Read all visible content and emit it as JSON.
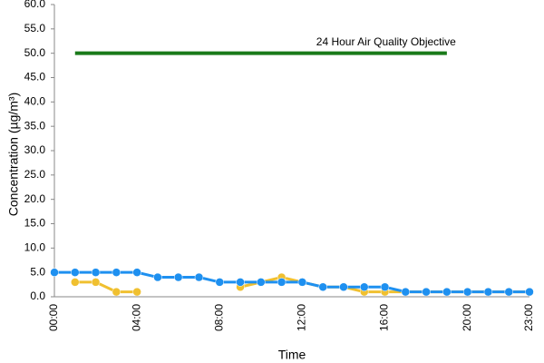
{
  "chart_data": {
    "type": "line",
    "y_label": "Concentration (µg/m³)",
    "x_label": "Time",
    "categories": [
      "00:00",
      null,
      null,
      null,
      "04:00",
      null,
      null,
      null,
      "08:00",
      null,
      null,
      null,
      "12:00",
      null,
      null,
      null,
      "16:00",
      null,
      null,
      null,
      "20:00",
      null,
      null,
      "23:00"
    ],
    "series": [
      {
        "color": "#f0c030",
        "values": [
          null,
          3,
          3,
          1,
          1,
          null,
          null,
          null,
          null,
          2,
          3,
          4,
          3,
          2,
          2,
          1,
          1,
          1,
          1,
          1,
          1,
          1,
          1,
          1
        ],
        "markers": true
      },
      {
        "color": "#1e90f0",
        "values": [
          5,
          5,
          5,
          5,
          5,
          4,
          4,
          4,
          3,
          3,
          3,
          3,
          3,
          2,
          2,
          2,
          2,
          1,
          1,
          1,
          1,
          1,
          1,
          1
        ],
        "markers": true
      },
      {
        "name": "24 Hour Air Quality Objective",
        "color": "#1a7a1a",
        "values": [
          null,
          50,
          50,
          50,
          50,
          50,
          50,
          50,
          50,
          50,
          50,
          50,
          50,
          50,
          50,
          50,
          50,
          50,
          50,
          50,
          null,
          null,
          null,
          null
        ],
        "markers": false
      }
    ],
    "ylim": [
      0,
      60
    ],
    "yticks": [
      {
        "value": 0,
        "label": "0.0"
      },
      {
        "value": 5,
        "label": "5.0"
      },
      {
        "value": 10,
        "label": "10.0"
      },
      {
        "value": 15,
        "label": "15.0"
      },
      {
        "value": 20,
        "label": "20.0"
      },
      {
        "value": 25,
        "label": "25.0"
      },
      {
        "value": 30,
        "label": "30.0"
      },
      {
        "value": 35,
        "label": "35.0"
      },
      {
        "value": 40,
        "label": "40.0"
      },
      {
        "value": 45,
        "label": "45.0"
      },
      {
        "value": 50,
        "label": "50.0"
      },
      {
        "value": 55,
        "label": "55.0"
      },
      {
        "value": 60,
        "label": "60.0"
      }
    ],
    "grid": false
  }
}
